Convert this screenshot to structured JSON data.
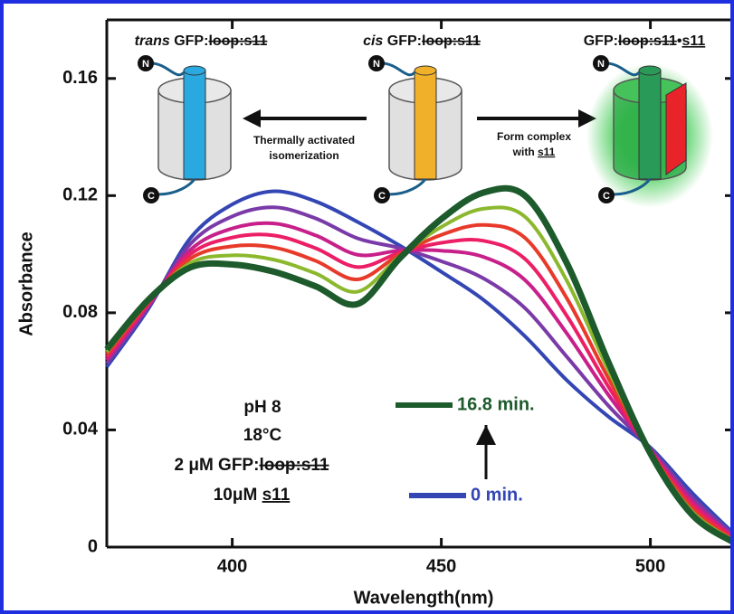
{
  "chart_data": {
    "type": "line",
    "x_label": "Wavelength(nm)",
    "y_label": "Absorbance",
    "x": [
      370,
      380,
      390,
      400,
      410,
      420,
      430,
      440,
      450,
      460,
      470,
      480,
      490,
      500,
      510,
      520
    ],
    "series": [
      {
        "name": "0 min.",
        "color": "#3346b4",
        "values": [
          0.0615,
          0.0815,
          0.1055,
          0.117,
          0.1215,
          0.118,
          0.111,
          0.103,
          0.094,
          0.0845,
          0.072,
          0.057,
          0.0445,
          0.034,
          0.0185,
          0.0045
        ]
      },
      {
        "color": "#7a3aa8",
        "values": [
          0.0627,
          0.0821,
          0.1035,
          0.1129,
          0.116,
          0.1122,
          0.1054,
          0.1021,
          0.0976,
          0.0918,
          0.0816,
          0.065,
          0.0482,
          0.0336,
          0.017,
          0.0039
        ]
      },
      {
        "color": "#c8208a",
        "values": [
          0.0639,
          0.0827,
          0.1015,
          0.1088,
          0.1105,
          0.1064,
          0.0998,
          0.1012,
          0.1012,
          0.0991,
          0.0912,
          0.073,
          0.0519,
          0.0332,
          0.0155,
          0.0033
        ]
      },
      {
        "color": "#ec1e66",
        "values": [
          0.0648,
          0.0832,
          0.1,
          0.1057,
          0.1064,
          0.102,
          0.0956,
          0.1005,
          0.1039,
          0.1046,
          0.0984,
          0.079,
          0.0547,
          0.0329,
          0.0144,
          0.0029
        ]
      },
      {
        "color": "#e83a2a",
        "values": [
          0.0657,
          0.0836,
          0.0985,
          0.1027,
          0.1023,
          0.0977,
          0.0914,
          0.0999,
          0.1066,
          0.11,
          0.1056,
          0.085,
          0.0575,
          0.0326,
          0.0133,
          0.0024
        ]
      },
      {
        "color": "#8cb82e",
        "values": [
          0.0666,
          0.0841,
          0.097,
          0.0996,
          0.0981,
          0.0934,
          0.0872,
          0.0992,
          0.1093,
          0.1155,
          0.1128,
          0.091,
          0.0602,
          0.0323,
          0.0121,
          0.002
        ]
      },
      {
        "name": "16.8 min.",
        "color": "#1d5a2c",
        "values": [
          0.0675,
          0.0845,
          0.0955,
          0.0965,
          0.094,
          0.089,
          0.083,
          0.0985,
          0.112,
          0.121,
          0.12,
          0.097,
          0.063,
          0.032,
          0.011,
          0.0015
        ]
      }
    ],
    "xlim": [
      370,
      520
    ],
    "xticks": [
      400,
      450,
      500
    ],
    "ylim": [
      0,
      0.18
    ],
    "yticks": [
      0,
      0.04,
      0.08,
      0.12,
      0.16
    ],
    "annotations": {
      "trans_label": [
        "trans",
        " GFP:",
        "loop:s11"
      ],
      "cis_label": [
        "cis",
        " GFP:",
        "loop:s11"
      ],
      "complex_label": [
        "GFP:",
        "loop:s11",
        "•",
        "s11"
      ],
      "arrow_left": [
        "Thermally activated",
        "isomerization"
      ],
      "arrow_right": [
        "Form complex",
        "with ",
        "s11"
      ],
      "terminus_n": "N",
      "terminus_c": "C",
      "conditions": [
        "pH 8",
        "18°C",
        "2 μM GFP:",
        "loop:s11",
        "10μM ",
        "s11"
      ]
    }
  }
}
